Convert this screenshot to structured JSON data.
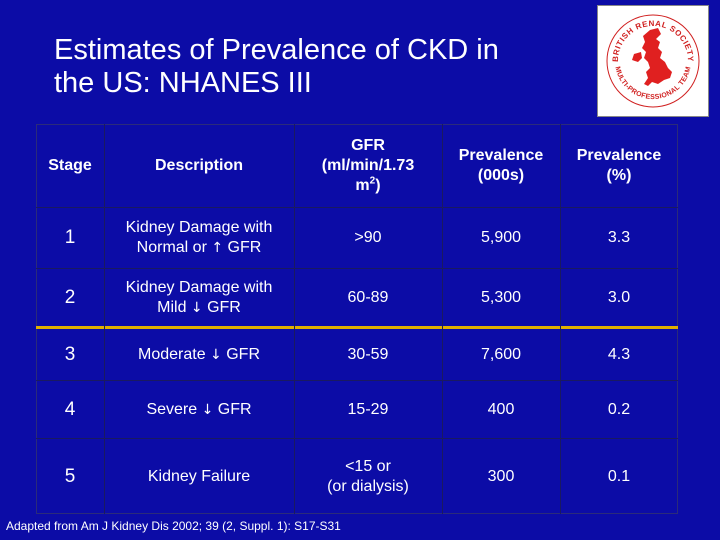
{
  "slide": {
    "title_line1": "Estimates of Prevalence of CKD in",
    "title_line2": "the US: NHANES III",
    "source": "Adapted from Am J Kidney Dis 2002; 39 (2, Suppl. 1): S17-S31"
  },
  "logo": {
    "text": "BRITISH RENAL SOCIETY · MULTI-PROFESSIONAL TEAM",
    "icon": "uk-map-logo",
    "map_color": "#e02020",
    "ring_text_color": "#d02020"
  },
  "colors": {
    "background": "#0c0ca6",
    "text": "#ffffff",
    "highlight_rule": "#e0b000"
  },
  "table": {
    "headers": {
      "stage": "Stage",
      "description": "Description",
      "gfr_line1": "GFR",
      "gfr_line2": "(ml/min/1.73",
      "gfr_line3": "m",
      "gfr_sup": "2",
      "gfr_close": ")",
      "prev_thousands_line1": "Prevalence",
      "prev_thousands_line2": "(000s)",
      "prev_percent_line1": "Prevalence",
      "prev_percent_line2": "(%)"
    },
    "rows": [
      {
        "stage": "1",
        "desc_line1": "Kidney Damage with",
        "desc_line2a": "Normal or ",
        "arrow": "↑",
        "desc_line2b": " GFR",
        "gfr": ">90",
        "prevalence_thousands": "5,900",
        "prevalence_percent": "3.3"
      },
      {
        "stage": "2",
        "desc_line1": "Kidney Damage with",
        "desc_line2a": "Mild ",
        "arrow": "↓",
        "desc_line2b": " GFR",
        "gfr": "60-89",
        "prevalence_thousands": "5,300",
        "prevalence_percent": "3.0"
      },
      {
        "stage": "3",
        "desc_a": "Moderate ",
        "arrow": "↓",
        "desc_b": " GFR",
        "gfr": "30-59",
        "prevalence_thousands": "7,600",
        "prevalence_percent": "4.3"
      },
      {
        "stage": "4",
        "desc_a": "Severe ",
        "arrow": "↓",
        "desc_b": " GFR",
        "gfr": "15-29",
        "prevalence_thousands": "400",
        "prevalence_percent": "0.2"
      },
      {
        "stage": "5",
        "desc_a": "Kidney Failure",
        "gfr_line1": "<15 or",
        "gfr_line2": "(or dialysis)",
        "prevalence_thousands": "300",
        "prevalence_percent": "0.1"
      }
    ]
  }
}
